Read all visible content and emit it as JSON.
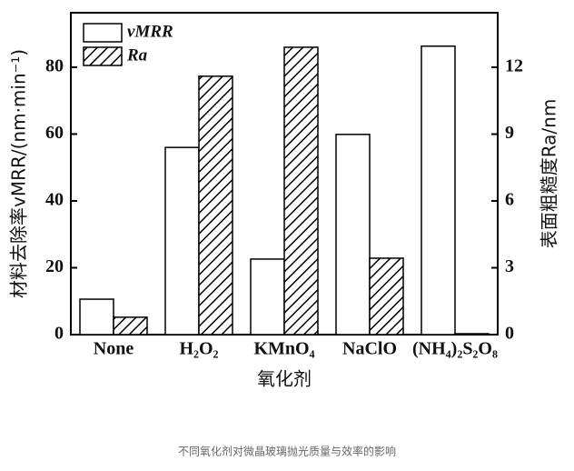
{
  "chart_data": {
    "type": "bar",
    "categories": [
      "None",
      "H₂O₂",
      "KMnO₄",
      "NaClO",
      "(NH₄)₂S₂O₈"
    ],
    "series": [
      {
        "name": "vMRR",
        "color": "#ffffff",
        "values": [
          10.6,
          56,
          22.6,
          59.9,
          86.3
        ]
      },
      {
        "name": "Ra",
        "color": "#000000",
        "hatch": true,
        "axis": "y2",
        "values": [
          0.78,
          11.6,
          12.9,
          3.43,
          0.04
        ]
      }
    ],
    "ylim": [
      0,
      96.3
    ],
    "yticks": [
      0,
      20,
      40,
      60,
      80
    ],
    "y2lim": [
      0,
      14.45
    ],
    "y2ticks": [
      0,
      3,
      6,
      9,
      12
    ],
    "ylabel": "材料去除率vMRR/(nm·min⁻¹)",
    "y2label": "表面粗糙度Ra/nm",
    "xlabel": "氧化剂",
    "legend": "upper left",
    "caption": "不同氧化剂对微晶玻璃抛光质量与效率的影响"
  }
}
